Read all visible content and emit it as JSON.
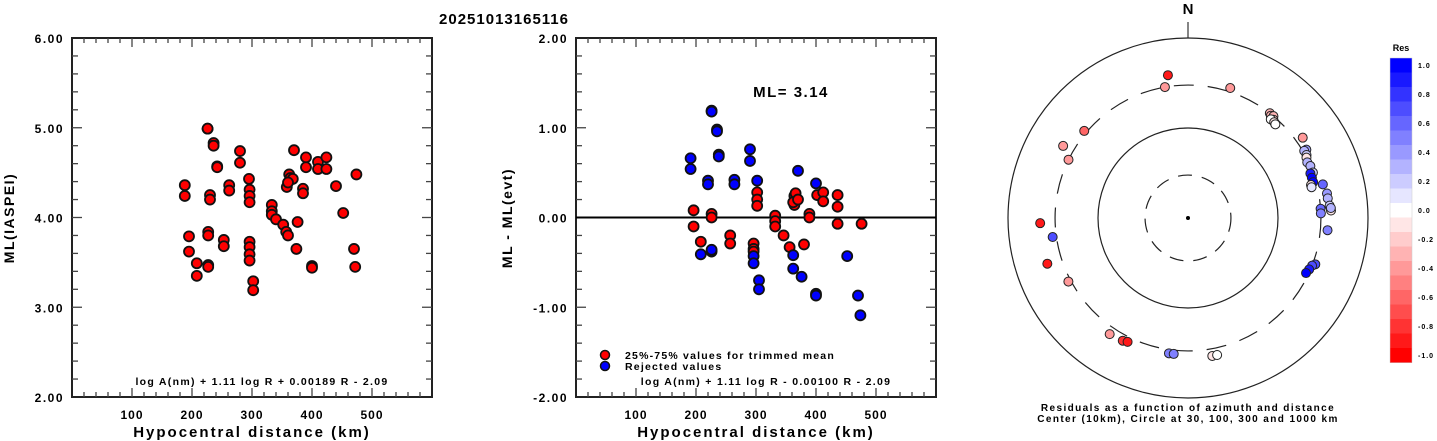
{
  "title": "20251013165116",
  "colors": {
    "accepted": "#ff0000",
    "rejected": "#0000ff",
    "axis": "#000000"
  },
  "chart_data": [
    {
      "type": "scatter",
      "title": "",
      "xlabel": "Hypocentral distance (km)",
      "ylabel": "ML(IASPEI)",
      "xlim": [
        0,
        600
      ],
      "ylim": [
        2,
        6
      ],
      "xticks": [
        "100",
        "200",
        "300",
        "400",
        "500"
      ],
      "xtick_values": [
        100,
        200,
        300,
        400,
        500
      ],
      "yticks": [
        "2.00",
        "3.00",
        "4.00",
        "5.00",
        "6.00"
      ],
      "ytick_values": [
        2,
        3,
        4,
        5,
        6
      ],
      "formula": "log A(nm) + 1.11 log R + 0.00189 R - 2.09",
      "series": [
        {
          "name": "stations",
          "color": "#ff0000",
          "points": [
            [
              188,
              4.36
            ],
            [
              188,
              4.24
            ],
            [
              195,
              3.79
            ],
            [
              195,
              3.62
            ],
            [
              208,
              3.49
            ],
            [
              208,
              3.35
            ],
            [
              226,
              4.99
            ],
            [
              226,
              4.99
            ],
            [
              227,
              3.84
            ],
            [
              227,
              3.8
            ],
            [
              227,
              3.47
            ],
            [
              227,
              3.45
            ],
            [
              230,
              4.25
            ],
            [
              230,
              4.2
            ],
            [
              236,
              4.83
            ],
            [
              236,
              4.8
            ],
            [
              242,
              4.57
            ],
            [
              242,
              4.56
            ],
            [
              253,
              3.75
            ],
            [
              253,
              3.68
            ],
            [
              262,
              4.36
            ],
            [
              262,
              4.3
            ],
            [
              280,
              4.74
            ],
            [
              280,
              4.61
            ],
            [
              295,
              4.43
            ],
            [
              296,
              4.31
            ],
            [
              296,
              4.24
            ],
            [
              296,
              4.17
            ],
            [
              296,
              3.73
            ],
            [
              296,
              3.67
            ],
            [
              296,
              3.59
            ],
            [
              296,
              3.52
            ],
            [
              302,
              3.29
            ],
            [
              302,
              3.19
            ],
            [
              333,
              4.14
            ],
            [
              333,
              4.07
            ],
            [
              333,
              4.03
            ],
            [
              340,
              3.98
            ],
            [
              352,
              3.92
            ],
            [
              357,
              3.84
            ],
            [
              360,
              3.8
            ],
            [
              358,
              4.34
            ],
            [
              362,
              4.48
            ],
            [
              364,
              4.44
            ],
            [
              368,
              4.43
            ],
            [
              360,
              4.39
            ],
            [
              370,
              4.75
            ],
            [
              374,
              3.65
            ],
            [
              376,
              3.95
            ],
            [
              385,
              4.32
            ],
            [
              385,
              4.27
            ],
            [
              390,
              4.67
            ],
            [
              390,
              4.56
            ],
            [
              400,
              3.46
            ],
            [
              400,
              3.44
            ],
            [
              410,
              4.62
            ],
            [
              410,
              4.54
            ],
            [
              424,
              4.67
            ],
            [
              424,
              4.54
            ],
            [
              440,
              4.35
            ],
            [
              452,
              4.05
            ],
            [
              470,
              3.65
            ],
            [
              472,
              3.45
            ],
            [
              474,
              4.48
            ]
          ]
        }
      ]
    },
    {
      "type": "scatter",
      "title": "",
      "xlabel": "Hypocentral distance (km)",
      "ylabel": "ML - ML(evt)",
      "xlim": [
        0,
        600
      ],
      "ylim": [
        -2,
        2
      ],
      "xticks": [
        "100",
        "200",
        "300",
        "400",
        "500"
      ],
      "xtick_values": [
        100,
        200,
        300,
        400,
        500
      ],
      "yticks": [
        "-2.00",
        "-1.00",
        "0.00",
        "1.00",
        "2.00"
      ],
      "ytick_values": [
        -2,
        -1,
        0,
        1,
        2
      ],
      "hline": 0,
      "annotation": "ML= 3.14",
      "formula": "log A(nm) + 1.11 log R - 0.00100 R - 2.09",
      "legend": [
        {
          "label": "25%-75% values for trimmed mean",
          "color": "#ff0000"
        },
        {
          "label": "Rejected values",
          "color": "#0000ff"
        }
      ],
      "legend_position": "bottom-left",
      "series": [
        {
          "name": "25%-75% values for trimmed mean",
          "color": "#ff0000",
          "points": [
            [
              196,
              0.08
            ],
            [
              196,
              -0.1
            ],
            [
              208,
              -0.27
            ],
            [
              226,
              0.04
            ],
            [
              226,
              0.0
            ],
            [
              257,
              -0.2
            ],
            [
              257,
              -0.29
            ],
            [
              296,
              -0.29
            ],
            [
              296,
              -0.35
            ],
            [
              296,
              -0.38
            ],
            [
              302,
              0.28
            ],
            [
              302,
              0.2
            ],
            [
              302,
              0.13
            ],
            [
              332,
              0.02
            ],
            [
              332,
              -0.04
            ],
            [
              332,
              -0.1
            ],
            [
              346,
              -0.2
            ],
            [
              356,
              -0.33
            ],
            [
              364,
              0.24
            ],
            [
              366,
              0.27
            ],
            [
              364,
              0.14
            ],
            [
              362,
              0.17
            ],
            [
              370,
              0.2
            ],
            [
              389,
              0.04
            ],
            [
              389,
              0.0
            ],
            [
              402,
              0.25
            ],
            [
              412,
              0.28
            ],
            [
              412,
              0.18
            ],
            [
              436,
              0.25
            ],
            [
              436,
              0.12
            ],
            [
              436,
              -0.07
            ],
            [
              476,
              -0.07
            ],
            [
              380,
              -0.3
            ]
          ]
        },
        {
          "name": "Rejected values",
          "color": "#0000ff",
          "points": [
            [
              191,
              0.66
            ],
            [
              191,
              0.54
            ],
            [
              226,
              1.19
            ],
            [
              226,
              1.18
            ],
            [
              235,
              0.98
            ],
            [
              235,
              0.96
            ],
            [
              238,
              0.7
            ],
            [
              238,
              0.68
            ],
            [
              220,
              0.41
            ],
            [
              220,
              0.37
            ],
            [
              208,
              -0.41
            ],
            [
              226,
              -0.38
            ],
            [
              226,
              -0.36
            ],
            [
              264,
              0.42
            ],
            [
              264,
              0.37
            ],
            [
              290,
              0.76
            ],
            [
              290,
              0.63
            ],
            [
              302,
              0.41
            ],
            [
              296,
              -0.43
            ],
            [
              296,
              -0.51
            ],
            [
              305,
              -0.7
            ],
            [
              305,
              -0.8
            ],
            [
              362,
              -0.42
            ],
            [
              362,
              -0.57
            ],
            [
              376,
              -0.66
            ],
            [
              370,
              0.52
            ],
            [
              400,
              0.38
            ],
            [
              400,
              -0.85
            ],
            [
              400,
              -0.87
            ],
            [
              452,
              -0.43
            ],
            [
              470,
              -0.87
            ],
            [
              474,
              -1.09
            ]
          ]
        }
      ]
    },
    {
      "type": "scatter",
      "subtype": "polar",
      "north_label": "N",
      "caption_line1": "Residuals as a function of azimuth and distance",
      "caption_line2": "Center (10km), Circle at 30, 100, 300 and 1000 km",
      "rings_km": [
        30,
        100,
        300,
        1000
      ],
      "colorbar": {
        "title": "Res",
        "ticks": [
          "1.0",
          "0.8",
          "0.6",
          "0.4",
          "0.2",
          "0.0",
          "-0.2",
          "-0.4",
          "-0.6",
          "-0.8",
          "-1.0"
        ],
        "range": [
          -1,
          1
        ]
      },
      "points_azimuth_distance_residual": [
        [
          352,
          400,
          -0.9
        ],
        [
          350,
          300,
          -0.45
        ],
        [
          18,
          330,
          -0.45
        ],
        [
          38,
          300,
          -0.35
        ],
        [
          39,
          290,
          -0.35
        ],
        [
          40,
          300,
          -0.3
        ],
        [
          41,
          280,
          -0.2
        ],
        [
          40,
          270,
          -0.05
        ],
        [
          42,
          270,
          -0.1
        ],
        [
          43,
          265,
          0.0
        ],
        [
          55,
          360,
          -0.4
        ],
        [
          60,
          330,
          0.4
        ],
        [
          60,
          310,
          0.3
        ],
        [
          62,
          310,
          0.2
        ],
        [
          63,
          300,
          -0.15
        ],
        [
          65,
          290,
          0.3
        ],
        [
          67,
          300,
          0.3
        ],
        [
          70,
          300,
          0.2
        ],
        [
          70,
          280,
          0.9
        ],
        [
          72,
          280,
          1.0
        ],
        [
          74,
          280,
          1.0
        ],
        [
          75,
          260,
          -0.1
        ],
        [
          76,
          260,
          0.05
        ],
        [
          76,
          350,
          0.6
        ],
        [
          80,
          370,
          0.4
        ],
        [
          82,
          370,
          0.3
        ],
        [
          85,
          380,
          0.2
        ],
        [
          87,
          390,
          -0.1
        ],
        [
          86,
          390,
          0.3
        ],
        [
          86,
          300,
          0.55
        ],
        [
          88,
          300,
          0.5
        ],
        [
          95,
          360,
          0.45
        ],
        [
          110,
          320,
          0.7
        ],
        [
          111,
          300,
          0.7
        ],
        [
          113,
          290,
          0.9
        ],
        [
          115,
          280,
          1.0
        ],
        [
          310,
          320,
          -0.6
        ],
        [
          300,
          400,
          -0.4
        ],
        [
          296,
          300,
          -0.4
        ],
        [
          268,
          440,
          -0.9
        ],
        [
          262,
          330,
          0.7
        ],
        [
          252,
          440,
          -0.9
        ],
        [
          242,
          320,
          -0.4
        ],
        [
          214,
          360,
          -0.4
        ],
        [
          208,
          350,
          -0.8
        ],
        [
          206,
          340,
          -0.9
        ],
        [
          188,
          330,
          0.45
        ],
        [
          186,
          330,
          0.45
        ],
        [
          170,
          360,
          -0.1
        ],
        [
          168,
          360,
          0.0
        ]
      ]
    }
  ]
}
